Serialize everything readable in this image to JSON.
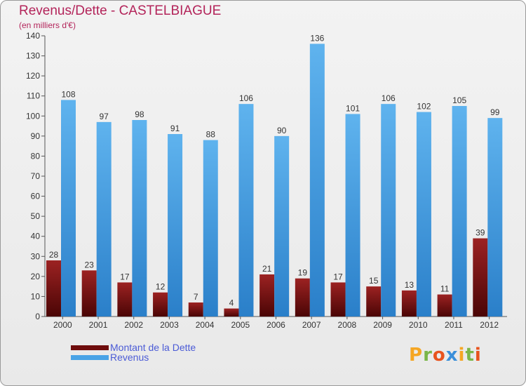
{
  "title": "Revenus/Dette - CASTELBIAGUE",
  "subtitle": "(en milliers d'€)",
  "legend": [
    {
      "label": "Montant de la Dette",
      "color": "#6e0c0c"
    },
    {
      "label": "Revenus",
      "color": "#4aa3e6"
    }
  ],
  "logo": {
    "text": "Proxiti",
    "colors": [
      "#f5a623",
      "#7ab648",
      "#e8531d",
      "#3b8fd9",
      "#f5a623",
      "#7ab648",
      "#e8531d"
    ]
  },
  "colors": {
    "debt_top": "#9c2222",
    "debt_bottom": "#4a0505",
    "rev_top": "#5fb3ee",
    "rev_bottom": "#2a7fc9",
    "title": "#b3245a"
  },
  "chart_data": {
    "type": "bar",
    "title": "Revenus/Dette - CASTELBIAGUE",
    "subtitle": "(en milliers d'€)",
    "categories": [
      "2000",
      "2001",
      "2002",
      "2003",
      "2004",
      "2005",
      "2006",
      "2007",
      "2008",
      "2009",
      "2010",
      "2011",
      "2012"
    ],
    "series": [
      {
        "name": "Montant de la Dette",
        "values": [
          28,
          23,
          17,
          12,
          7,
          4,
          21,
          19,
          17,
          15,
          13,
          11,
          39
        ]
      },
      {
        "name": "Revenus",
        "values": [
          108,
          97,
          98,
          91,
          88,
          106,
          90,
          136,
          101,
          106,
          102,
          105,
          99
        ]
      }
    ],
    "ylim": [
      0,
      140
    ],
    "yticks": [
      0,
      10,
      20,
      30,
      40,
      50,
      60,
      70,
      80,
      90,
      100,
      110,
      120,
      130,
      140
    ],
    "grid": false,
    "legend_position": "bottom-left",
    "data_labels": true
  }
}
